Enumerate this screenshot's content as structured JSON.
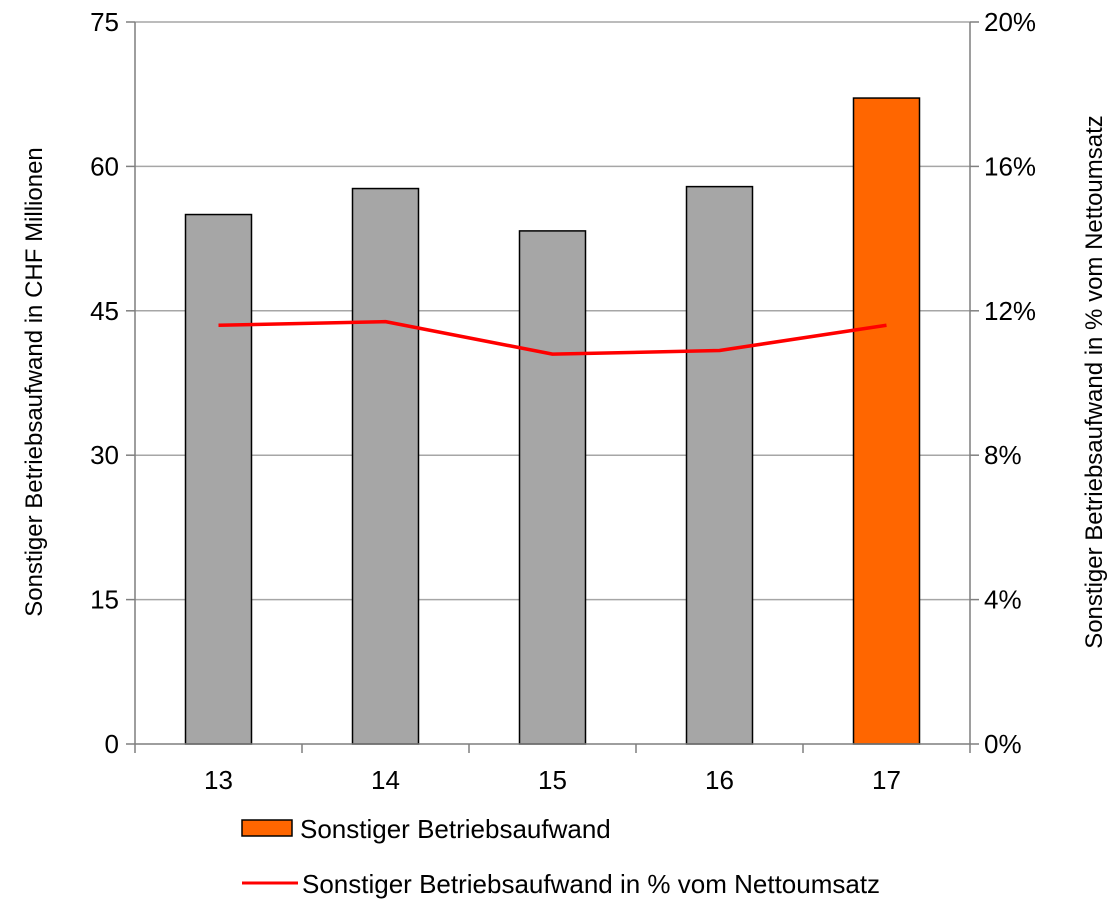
{
  "chart_data": {
    "type": "bar",
    "categories": [
      "13",
      "14",
      "15",
      "16",
      "17"
    ],
    "series": [
      {
        "name": "Sonstiger Betriebsaufwand",
        "type": "bar",
        "axis": "left",
        "values": [
          55.0,
          57.7,
          53.3,
          57.9,
          67.1
        ],
        "colors": [
          "#a6a6a6",
          "#a6a6a6",
          "#a6a6a6",
          "#a6a6a6",
          "#ff6600"
        ]
      },
      {
        "name": "Sonstiger Betriebsaufwand in % vom Nettoumsatz",
        "type": "line",
        "axis": "right",
        "values": [
          11.6,
          11.7,
          10.8,
          10.9,
          11.6
        ],
        "color": "#ff0000"
      }
    ],
    "ylabel": "Sonstiger Betriebsaufwand in CHF Millionen",
    "y2label": "Sonstiger Betriebsaufwand in % vom Nettoumsatz",
    "ylim": [
      0,
      75
    ],
    "y2lim": [
      0,
      20
    ],
    "yticks": [
      "0",
      "15",
      "30",
      "45",
      "60",
      "75"
    ],
    "y2ticks": [
      "0%",
      "4%",
      "8%",
      "12%",
      "16%",
      "20%"
    ],
    "grid": true,
    "legend_position": "bottom"
  }
}
